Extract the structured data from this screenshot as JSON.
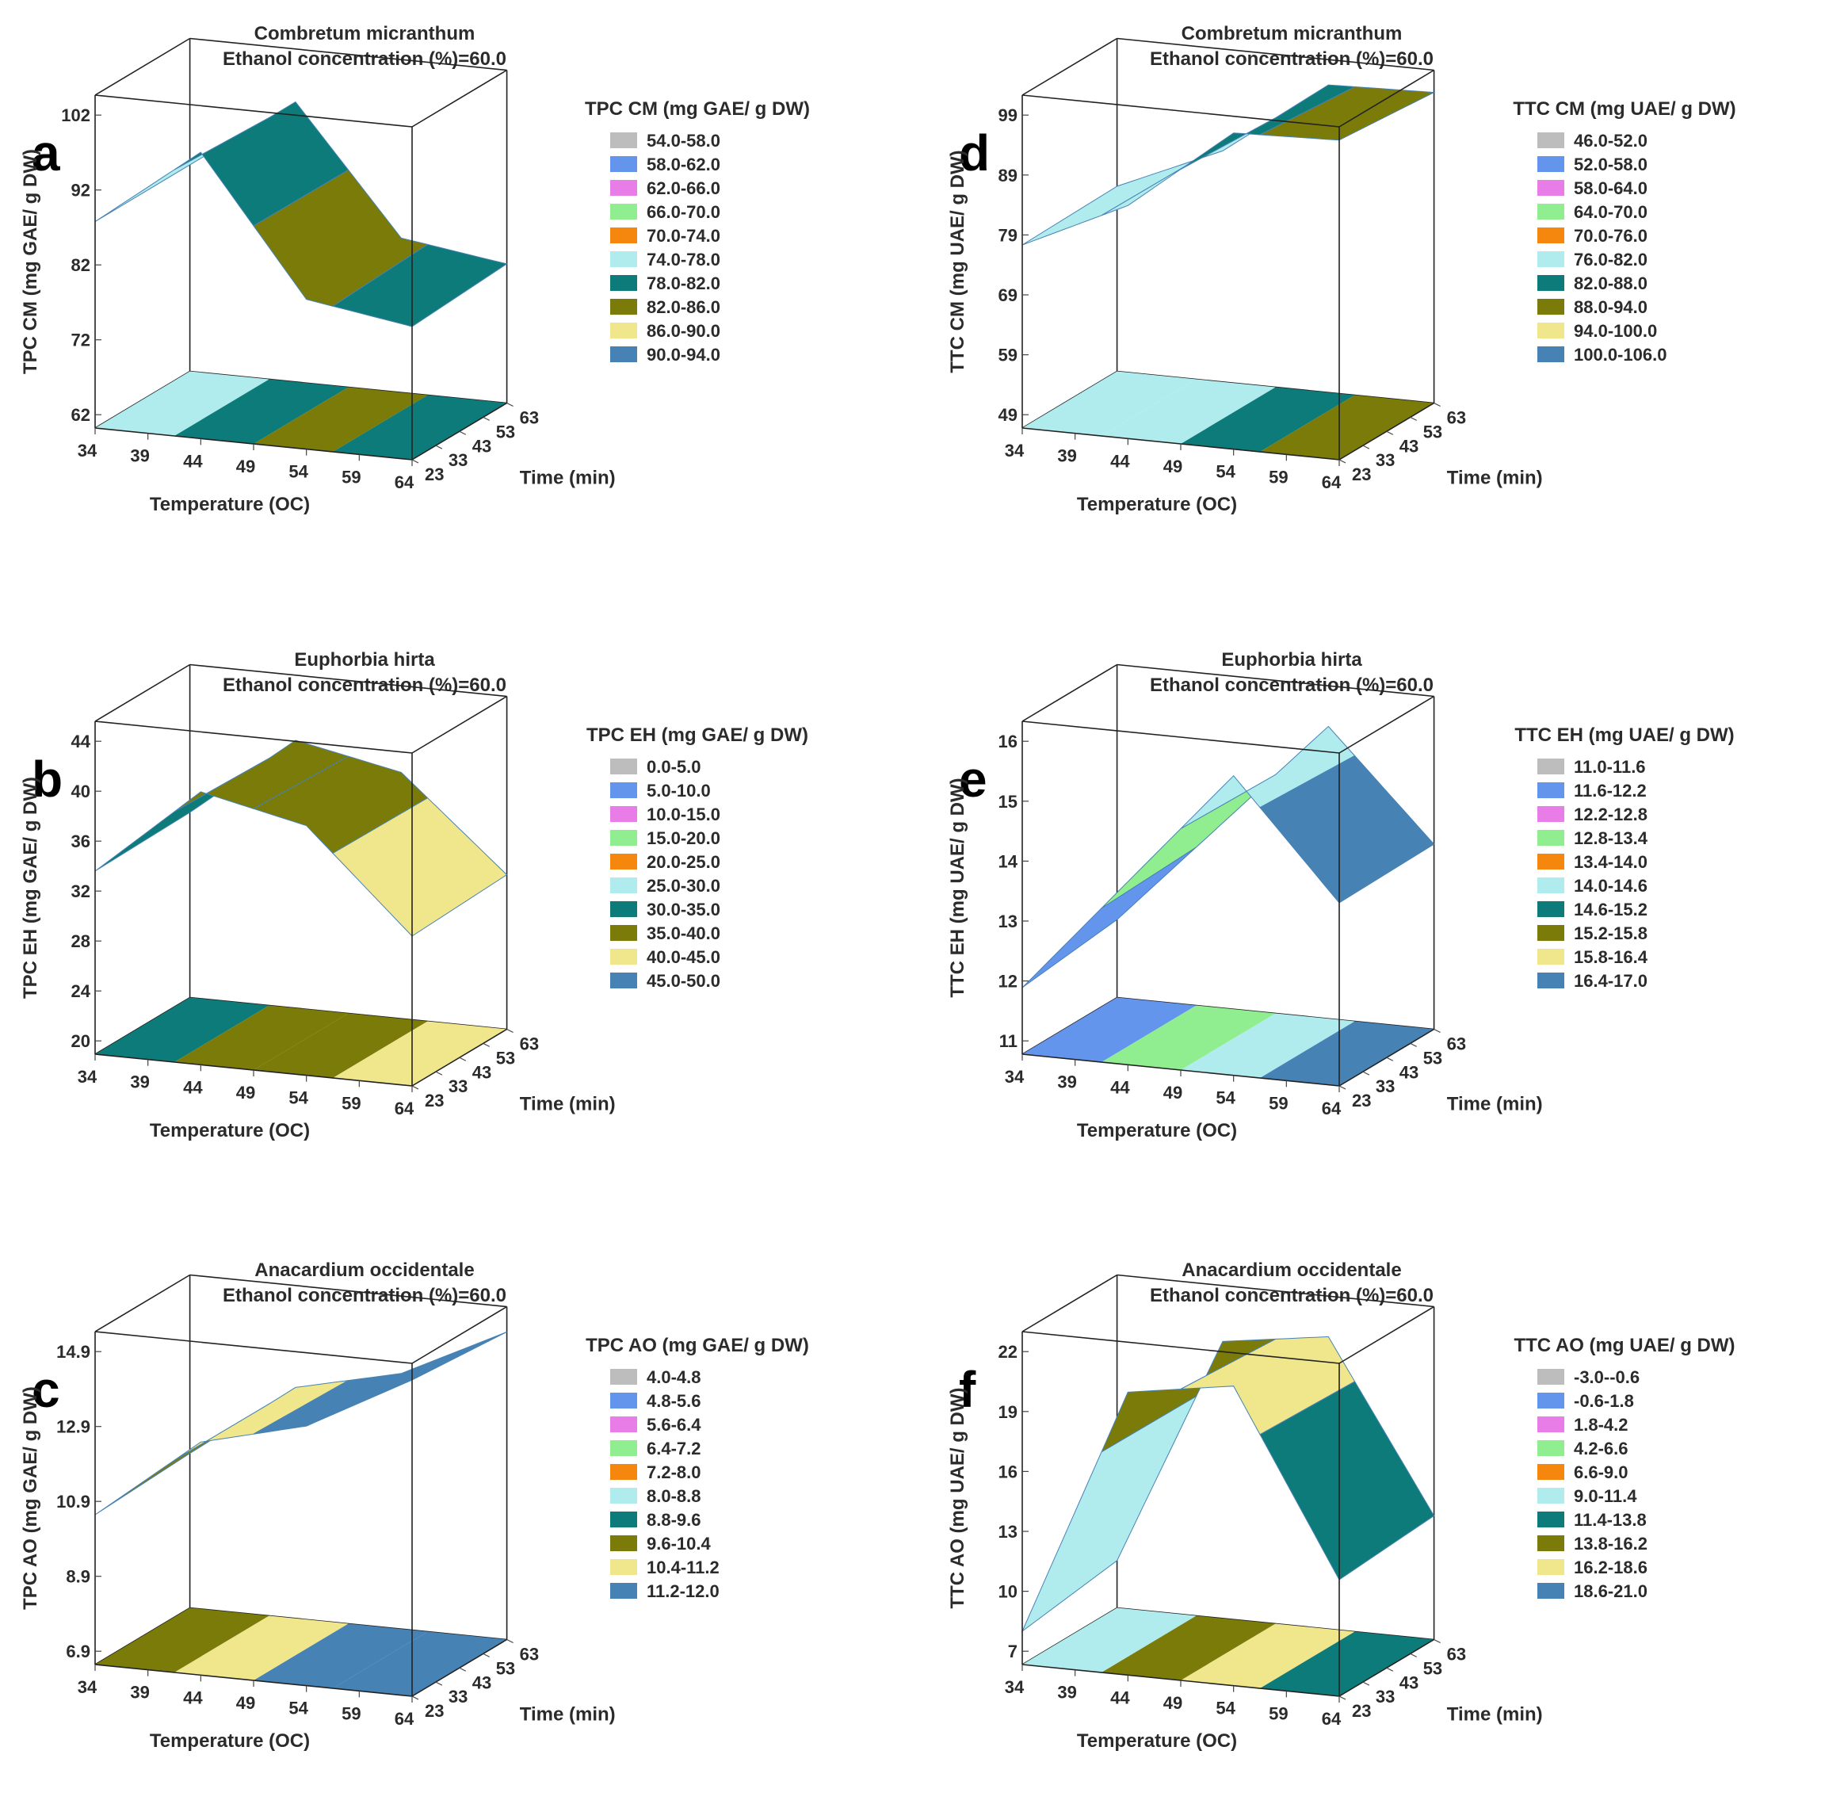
{
  "chart_data": [
    {
      "type": "surface",
      "panel_label": "a",
      "title": "Combretum micranthum",
      "subtitle": "Ethanol concentration (%)=60.0",
      "xlabel": "Temperature (OC)",
      "ylabel": "Time (min)",
      "zlabel": "TPC CM (mg GAE/ g DW)",
      "x_ticks": [
        "34",
        "39",
        "44",
        "49",
        "54",
        "59",
        "64"
      ],
      "y_ticks": [
        "23",
        "33",
        "43",
        "53",
        "63"
      ],
      "z_ticks": [
        "62",
        "72",
        "82",
        "92",
        "102"
      ],
      "xlim": [
        34,
        64
      ],
      "ylim": [
        23,
        63
      ],
      "zlim": [
        62,
        102
      ],
      "legend_title": "TPC CM (mg GAE/ g DW)",
      "legend": [
        {
          "label": "54.0-58.0",
          "color": "#bdbdbd"
        },
        {
          "label": "58.0-62.0",
          "color": "#6495ed"
        },
        {
          "label": "62.0-66.0",
          "color": "#e87de8"
        },
        {
          "label": "66.0-70.0",
          "color": "#90ee90"
        },
        {
          "label": "70.0-74.0",
          "color": "#f5870f"
        },
        {
          "label": "74.0-78.0",
          "color": "#b0ecee"
        },
        {
          "label": "78.0-82.0",
          "color": "#0d7b79"
        },
        {
          "label": "82.0-86.0",
          "color": "#7b7b0a"
        },
        {
          "label": "86.0-90.0",
          "color": "#f0e68c"
        },
        {
          "label": "90.0-94.0",
          "color": "#4682b4"
        }
      ]
    },
    {
      "type": "surface",
      "panel_label": "d",
      "title": "Combretum micranthum",
      "subtitle": "Ethanol concentration (%)=60.0",
      "xlabel": "Temperature (OC)",
      "ylabel": "Time (min)",
      "zlabel": "TTC CM (mg UAE/ g DW)",
      "x_ticks": [
        "34",
        "39",
        "44",
        "49",
        "54",
        "59",
        "64"
      ],
      "y_ticks": [
        "23",
        "33",
        "43",
        "53",
        "63"
      ],
      "z_ticks": [
        "49",
        "59",
        "69",
        "79",
        "89",
        "99"
      ],
      "xlim": [
        34,
        64
      ],
      "ylim": [
        23,
        63
      ],
      "zlim": [
        49,
        99
      ],
      "legend_title": "TTC CM (mg UAE/ g DW)",
      "legend": [
        {
          "label": "46.0-52.0",
          "color": "#bdbdbd"
        },
        {
          "label": "52.0-58.0",
          "color": "#6495ed"
        },
        {
          "label": "58.0-64.0",
          "color": "#e87de8"
        },
        {
          "label": "64.0-70.0",
          "color": "#90ee90"
        },
        {
          "label": "70.0-76.0",
          "color": "#f5870f"
        },
        {
          "label": "76.0-82.0",
          "color": "#b0ecee"
        },
        {
          "label": "82.0-88.0",
          "color": "#0d7b79"
        },
        {
          "label": "88.0-94.0",
          "color": "#7b7b0a"
        },
        {
          "label": "94.0-100.0",
          "color": "#f0e68c"
        },
        {
          "label": "100.0-106.0",
          "color": "#4682b4"
        }
      ]
    },
    {
      "type": "surface",
      "panel_label": "b",
      "title": "Euphorbia hirta",
      "subtitle": "Ethanol concentration (%)=60.0",
      "xlabel": "Temperature (OC)",
      "ylabel": "Time (min)",
      "zlabel": "TPC EH (mg GAE/ g DW)",
      "x_ticks": [
        "34",
        "39",
        "44",
        "49",
        "54",
        "59",
        "64"
      ],
      "y_ticks": [
        "23",
        "33",
        "43",
        "53",
        "63"
      ],
      "z_ticks": [
        "20",
        "24",
        "28",
        "32",
        "36",
        "40",
        "44"
      ],
      "xlim": [
        34,
        64
      ],
      "ylim": [
        23,
        63
      ],
      "zlim": [
        20,
        44
      ],
      "legend_title": "TPC EH (mg GAE/ g DW)",
      "legend": [
        {
          "label": "0.0-5.0",
          "color": "#bdbdbd"
        },
        {
          "label": "5.0-10.0",
          "color": "#6495ed"
        },
        {
          "label": "10.0-15.0",
          "color": "#e87de8"
        },
        {
          "label": "15.0-20.0",
          "color": "#90ee90"
        },
        {
          "label": "20.0-25.0",
          "color": "#f5870f"
        },
        {
          "label": "25.0-30.0",
          "color": "#b0ecee"
        },
        {
          "label": "30.0-35.0",
          "color": "#0d7b79"
        },
        {
          "label": "35.0-40.0",
          "color": "#7b7b0a"
        },
        {
          "label": "40.0-45.0",
          "color": "#f0e68c"
        },
        {
          "label": "45.0-50.0",
          "color": "#4682b4"
        }
      ]
    },
    {
      "type": "surface",
      "panel_label": "e",
      "title": "Euphorbia hirta",
      "subtitle": "Ethanol concentration (%)=60.0",
      "xlabel": "Temperature (OC)",
      "ylabel": "Time (min)",
      "zlabel": "TTC EH (mg UAE/ g DW)",
      "x_ticks": [
        "34",
        "39",
        "44",
        "49",
        "54",
        "59",
        "64"
      ],
      "y_ticks": [
        "23",
        "33",
        "43",
        "53",
        "63"
      ],
      "z_ticks": [
        "11",
        "12",
        "13",
        "14",
        "15",
        "16"
      ],
      "xlim": [
        34,
        64
      ],
      "ylim": [
        23,
        63
      ],
      "zlim": [
        11,
        16
      ],
      "legend_title": "TTC EH (mg UAE/ g DW)",
      "legend": [
        {
          "label": "11.0-11.6",
          "color": "#bdbdbd"
        },
        {
          "label": "11.6-12.2",
          "color": "#6495ed"
        },
        {
          "label": "12.2-12.8",
          "color": "#e87de8"
        },
        {
          "label": "12.8-13.4",
          "color": "#90ee90"
        },
        {
          "label": "13.4-14.0",
          "color": "#f5870f"
        },
        {
          "label": "14.0-14.6",
          "color": "#b0ecee"
        },
        {
          "label": "14.6-15.2",
          "color": "#0d7b79"
        },
        {
          "label": "15.2-15.8",
          "color": "#7b7b0a"
        },
        {
          "label": "15.8-16.4",
          "color": "#f0e68c"
        },
        {
          "label": "16.4-17.0",
          "color": "#4682b4"
        }
      ]
    },
    {
      "type": "surface",
      "panel_label": "c",
      "title": "Anacardium occidentale",
      "subtitle": "Ethanol concentration (%)=60.0",
      "xlabel": "Temperature (OC)",
      "ylabel": "Time (min)",
      "zlabel": "TPC AO (mg GAE/ g DW)",
      "x_ticks": [
        "34",
        "39",
        "44",
        "49",
        "54",
        "59",
        "64"
      ],
      "y_ticks": [
        "23",
        "33",
        "43",
        "53",
        "63"
      ],
      "z_ticks": [
        "6.9",
        "8.9",
        "10.9",
        "12.9",
        "14.9"
      ],
      "xlim": [
        34,
        64
      ],
      "ylim": [
        23,
        63
      ],
      "zlim": [
        6.9,
        14.9
      ],
      "legend_title": "TPC AO (mg GAE/ g DW)",
      "legend": [
        {
          "label": "4.0-4.8",
          "color": "#bdbdbd"
        },
        {
          "label": "4.8-5.6",
          "color": "#6495ed"
        },
        {
          "label": "5.6-6.4",
          "color": "#e87de8"
        },
        {
          "label": "6.4-7.2",
          "color": "#90ee90"
        },
        {
          "label": "7.2-8.0",
          "color": "#f5870f"
        },
        {
          "label": "8.0-8.8",
          "color": "#b0ecee"
        },
        {
          "label": "8.8-9.6",
          "color": "#0d7b79"
        },
        {
          "label": "9.6-10.4",
          "color": "#7b7b0a"
        },
        {
          "label": "10.4-11.2",
          "color": "#f0e68c"
        },
        {
          "label": "11.2-12.0",
          "color": "#4682b4"
        }
      ]
    },
    {
      "type": "surface",
      "panel_label": "f",
      "title": "Anacardium occidentale",
      "subtitle": "Ethanol concentration (%)=60.0",
      "xlabel": "Temperature (OC)",
      "ylabel": "Time (min)",
      "zlabel": "TTC AO (mg UAE/ g DW)",
      "x_ticks": [
        "34",
        "39",
        "44",
        "49",
        "54",
        "59",
        "64"
      ],
      "y_ticks": [
        "23",
        "33",
        "43",
        "53",
        "63"
      ],
      "z_ticks": [
        "7",
        "10",
        "13",
        "16",
        "19",
        "22"
      ],
      "xlim": [
        34,
        64
      ],
      "ylim": [
        23,
        63
      ],
      "zlim": [
        7,
        22
      ],
      "legend_title": "TTC AO (mg UAE/ g DW)",
      "legend": [
        {
          "label": "-3.0--0.6",
          "color": "#bdbdbd"
        },
        {
          "label": "-0.6-1.8",
          "color": "#6495ed"
        },
        {
          "label": "1.8-4.2",
          "color": "#e87de8"
        },
        {
          "label": "4.2-6.6",
          "color": "#90ee90"
        },
        {
          "label": "6.6-9.0",
          "color": "#f5870f"
        },
        {
          "label": "9.0-11.4",
          "color": "#b0ecee"
        },
        {
          "label": "11.4-13.8",
          "color": "#0d7b79"
        },
        {
          "label": "13.8-16.2",
          "color": "#7b7b0a"
        },
        {
          "label": "16.2-18.6",
          "color": "#f0e68c"
        },
        {
          "label": "18.6-21.0",
          "color": "#4682b4"
        }
      ]
    }
  ]
}
